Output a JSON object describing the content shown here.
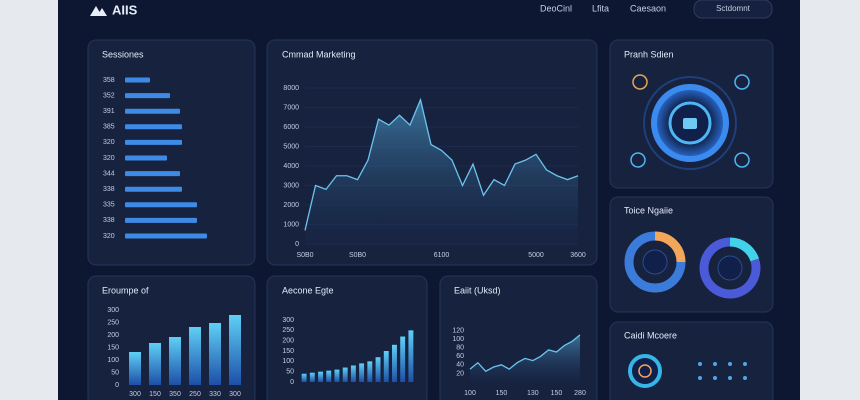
{
  "header": {
    "logo": "AIIS",
    "nav": [
      "DeoCinl",
      "Lfita",
      "Caesaon"
    ],
    "button": "Sctdomnt"
  },
  "panels": [
    {
      "title": "Pranh Sdien"
    },
    {
      "title": "Caidi Mcoere"
    }
  ],
  "chart_data": [
    {
      "type": "hbar",
      "title": "Sessiones",
      "categories": [
        "358",
        "352",
        "391",
        "385",
        "320",
        "320",
        "344",
        "338",
        "335",
        "338",
        "320"
      ],
      "values": [
        25,
        45,
        55,
        57,
        57,
        42,
        55,
        57,
        72,
        72,
        82
      ],
      "xlim": [
        0,
        100
      ],
      "color": "#3d8be6"
    },
    {
      "type": "area",
      "title": "Cmmad Marketing",
      "categories": [
        "S0B0",
        null,
        null,
        null,
        null,
        "S0B0",
        null,
        null,
        null,
        null,
        null,
        null,
        null,
        "6100",
        null,
        null,
        null,
        null,
        null,
        null,
        null,
        null,
        "5000",
        null,
        null,
        null,
        "3600"
      ],
      "values": [
        700,
        3000,
        2800,
        3500,
        3500,
        3300,
        4300,
        6400,
        6100,
        6600,
        6100,
        7400,
        5100,
        4800,
        4300,
        3000,
        4100,
        2500,
        3300,
        3000,
        4100,
        4300,
        4600,
        3800,
        3500,
        3300,
        3500
      ],
      "ylim": [
        0,
        8000
      ],
      "yticks": [
        0,
        1000,
        2000,
        3000,
        4000,
        5000,
        6000,
        7000,
        8000
      ],
      "color": "#6cc4ee",
      "grid": true
    },
    {
      "type": "donut",
      "title": "Toice Ngaiie",
      "series": [
        {
          "values": [
            25,
            75
          ],
          "colors": [
            "#f2a65a",
            "#3b7bd9"
          ]
        },
        {
          "values": [
            20,
            80
          ],
          "colors": [
            "#41d1e8",
            "#4a5ad8"
          ]
        }
      ]
    },
    {
      "type": "bar",
      "title": "Eroumpe of",
      "categories": [
        "300",
        "150",
        "350",
        "250",
        "330",
        "300"
      ],
      "values": [
        132,
        168,
        192,
        232,
        248,
        280
      ],
      "ylim": [
        0,
        300
      ],
      "yticks": [
        0,
        50,
        100,
        150,
        200,
        250,
        300
      ],
      "color": "#3aa0e8"
    },
    {
      "type": "bar",
      "title": "Aecone Egte",
      "values": [
        40,
        45,
        50,
        55,
        60,
        70,
        80,
        90,
        100,
        120,
        150,
        180,
        220,
        250
      ],
      "ylim": [
        0,
        300
      ],
      "yticks": [
        0,
        50,
        100,
        150,
        200,
        250,
        300
      ],
      "color": "#3aa0e8"
    },
    {
      "type": "area",
      "title": "Eaiit (Uksd)",
      "categories": [
        "100",
        null,
        null,
        null,
        "150",
        null,
        null,
        null,
        "130",
        null,
        null,
        "150",
        null,
        null,
        "280"
      ],
      "values": [
        30,
        45,
        25,
        35,
        40,
        30,
        45,
        55,
        50,
        60,
        75,
        70,
        85,
        95,
        110
      ],
      "ylim": [
        0,
        140
      ],
      "yticks": [
        20,
        40,
        60,
        80,
        100,
        120
      ],
      "color": "#6cc4ee",
      "grid": false
    }
  ]
}
